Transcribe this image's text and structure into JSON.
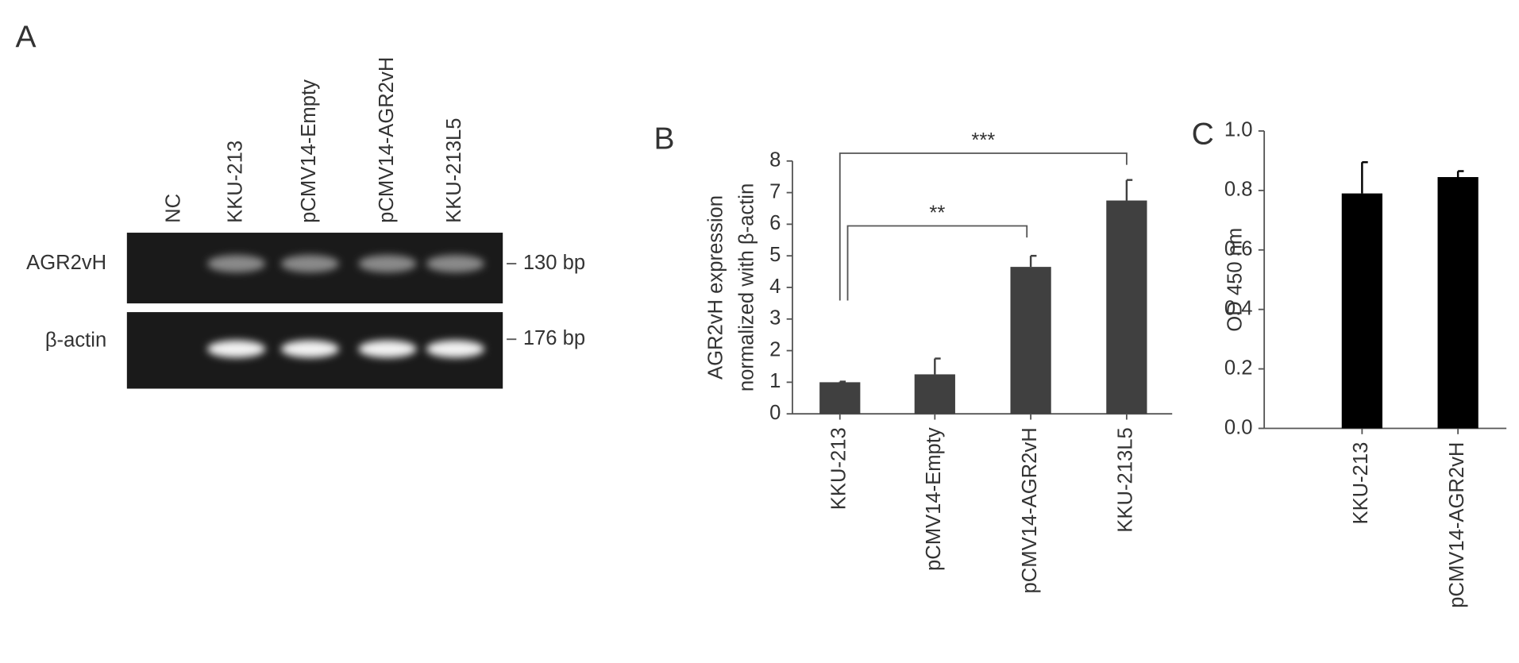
{
  "panel_a": {
    "label": "A",
    "lanes": [
      "NC",
      "KKU-213",
      "pCMV14-Empty",
      "pCMV14-AGR2vH",
      "KKU-213L5"
    ],
    "rows": [
      {
        "name": "AGR2vH",
        "size": "130 bp"
      },
      {
        "name": "β-actin",
        "size": "176 bp"
      }
    ]
  },
  "chart_data": [
    {
      "type": "bar",
      "label": "B",
      "ylabel": [
        "AGR2vH expression",
        "normalized with β-actin"
      ],
      "categories": [
        "KKU-213",
        "pCMV14-Empty",
        "pCMV14-AGR2vH",
        "KKU-213L5"
      ],
      "values": [
        1.0,
        1.25,
        4.65,
        6.75
      ],
      "errors": [
        0.02,
        0.5,
        0.35,
        0.65
      ],
      "color": "#404040",
      "ylim": [
        0,
        8
      ],
      "yticks": [
        0,
        1,
        2,
        3,
        4,
        5,
        6,
        7,
        8
      ],
      "annotations": [
        "**",
        "***"
      ]
    },
    {
      "type": "bar",
      "label": "C",
      "ylabel": [
        "OD 450 nm"
      ],
      "categories": [
        "KKU-213",
        "pCMV14-AGR2vH"
      ],
      "values": [
        0.79,
        0.845
      ],
      "errors": [
        0.105,
        0.02
      ],
      "color": "#000000",
      "ylim": [
        0,
        1.0
      ],
      "yticks": [
        {
          "value": 0,
          "label": "0.0"
        },
        0.2,
        0.4,
        0.6,
        0.8,
        {
          "value": 1,
          "label": "1.0"
        }
      ]
    }
  ]
}
